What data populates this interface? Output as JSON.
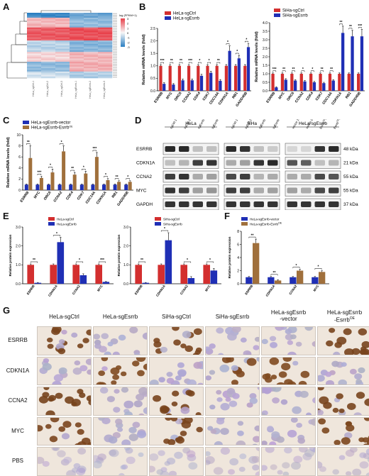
{
  "panel_labels": {
    "A": "A",
    "B": "B",
    "C": "C",
    "D": "D",
    "E": "E",
    "F": "F",
    "G": "G"
  },
  "heatmap": {
    "legend_title": "log (FPKM+1)",
    "legend_ticks": [
      "3",
      "2",
      "1",
      "0",
      "-1",
      "-2",
      "-3"
    ],
    "colors": {
      "high": "#e8404a",
      "mid": "#f7f7f7",
      "low": "#2b7fc2"
    },
    "columns": [
      "HeLa_sgCtrl-1",
      "HeLa_sgCtrl-2",
      "HeLa_sgCtrl-3",
      "HeLa_sgEsrrb-1",
      "HeLa_sgEsrrb-2",
      "HeLa_sgEsrrb-3"
    ]
  },
  "chart_data": [
    {
      "id": "B-left",
      "type": "bar",
      "ylabel": "Relative mRNA levels (fold)",
      "ylim": [
        0,
        2.5
      ],
      "yticks": [
        0.0,
        0.5,
        1.0,
        1.5,
        2.0,
        2.5
      ],
      "legend": [
        "HeLa-sgCtrl",
        "HeLa-sgEsrrb"
      ],
      "categories": [
        "ESRRB",
        "MYC",
        "ORC6",
        "CCNA2",
        "CDK4",
        "CDK7",
        "CDC14A",
        "CDKN1A",
        "RB1",
        "GADD45B"
      ],
      "series": [
        {
          "name": "HeLa-sgCtrl",
          "color": "#d32f2f",
          "values": [
            1,
            1,
            1,
            1,
            1,
            1,
            1,
            1,
            1,
            1
          ],
          "errors": [
            0.05,
            0.05,
            0.05,
            0.05,
            0.05,
            0.05,
            0.05,
            0.05,
            0.05,
            0.05
          ]
        },
        {
          "name": "HeLa-sgEsrrb",
          "color": "#1f2fb5",
          "values": [
            0.28,
            0.25,
            0.42,
            0.42,
            0.6,
            0.72,
            0.4,
            1.6,
            1.3,
            1.75
          ],
          "errors": [
            0.04,
            0.04,
            0.05,
            0.05,
            0.06,
            0.06,
            0.05,
            0.2,
            0.12,
            0.15
          ]
        }
      ],
      "sig": [
        "***",
        "**",
        "**",
        "***",
        "*",
        "*",
        "**",
        "*",
        "*",
        "*"
      ]
    },
    {
      "id": "B-right",
      "type": "bar",
      "ylabel": "Relative mRNA levels (fold)",
      "ylim": [
        0,
        4.0
      ],
      "yticks": [
        0.0,
        0.5,
        1.0,
        1.5,
        2.0,
        2.5,
        3.0,
        3.5,
        4.0
      ],
      "legend": [
        "SiHa-sgCtrl",
        "SiHa-sgEsrrb"
      ],
      "categories": [
        "ESRRB",
        "MYC",
        "ORC6",
        "CCNA2",
        "CDK4",
        "CDK7",
        "CDC14A",
        "CDKN1A",
        "RB1",
        "GADD45B"
      ],
      "series": [
        {
          "name": "SiHa-sgCtrl",
          "color": "#d32f2f",
          "values": [
            1,
            1,
            1,
            1,
            1,
            1,
            1,
            1,
            1,
            1
          ],
          "errors": [
            0.05,
            0.05,
            0.05,
            0.05,
            0.05,
            0.05,
            0.05,
            0.05,
            0.05,
            0.05
          ]
        },
        {
          "name": "SiHa-sgEsrrb",
          "color": "#1f2fb5",
          "values": [
            0.2,
            0.65,
            0.6,
            0.55,
            0.5,
            0.45,
            0.6,
            3.4,
            3.2,
            3.2
          ],
          "errors": [
            0.04,
            0.06,
            0.05,
            0.05,
            0.05,
            0.05,
            0.05,
            0.4,
            0.35,
            0.4
          ]
        }
      ],
      "sig": [
        "***",
        "**",
        "**",
        "*",
        "*",
        "**",
        "**",
        "**",
        "**",
        "***"
      ]
    },
    {
      "id": "C",
      "type": "bar",
      "ylabel": "Relative mRNA levels (fold)",
      "ylim": [
        0,
        10
      ],
      "yticks": [
        0,
        2,
        4,
        6,
        8,
        10
      ],
      "legend": [
        "HeLa-sgEsrrb-vector",
        "HeLa-sgEsrrb-Esrrb"
      ],
      "legend_sup": "OE",
      "categories": [
        "ESRRB",
        "MYC",
        "ORC6",
        "CCNA2",
        "CDK4",
        "CDK7",
        "CDC14A",
        "CDKN1A",
        "RB1",
        "GADD45B"
      ],
      "series": [
        {
          "name": "HeLa-sgEsrrb-vector",
          "color": "#1f2fb5",
          "values": [
            1,
            1,
            1,
            1,
            1,
            1,
            1,
            1,
            1,
            1
          ],
          "errors": [
            0.1,
            0.1,
            0.1,
            0.1,
            0.1,
            0.1,
            0.1,
            0.1,
            0.1,
            0.1
          ]
        },
        {
          "name": "HeLa-sgEsrrb-Esrrb",
          "color": "#a0703c",
          "values": [
            5.8,
            2.2,
            3.2,
            7.0,
            2.8,
            3.0,
            6.0,
            1.8,
            1.5,
            1.5
          ],
          "errors": [
            2.2,
            0.3,
            0.6,
            1.0,
            0.4,
            0.4,
            0.8,
            0.3,
            0.2,
            0.2
          ]
        }
      ],
      "sig": [
        "**",
        "***",
        "*",
        "*",
        "**",
        "*",
        "***",
        "*",
        "**",
        "*"
      ]
    },
    {
      "id": "E-left",
      "type": "bar",
      "ylabel": "Relative protein expression",
      "ylim": [
        0,
        3
      ],
      "yticks": [
        0,
        1,
        2,
        3
      ],
      "legend": [
        "HeLa-sgCtrl",
        "HeLa-sgEsrrb"
      ],
      "categories": [
        "ESRRB",
        "CDKN1A",
        "CCNA2",
        "MYC"
      ],
      "series": [
        {
          "name": "HeLa-sgCtrl",
          "color": "#d32f2f",
          "values": [
            1,
            1,
            1,
            1
          ],
          "errors": [
            0.05,
            0.05,
            0.05,
            0.05
          ]
        },
        {
          "name": "HeLa-sgEsrrb",
          "color": "#1f2fb5",
          "values": [
            0.05,
            2.2,
            0.45,
            0.1
          ],
          "errors": [
            0.02,
            0.25,
            0.08,
            0.02
          ]
        }
      ],
      "sig": [
        "**",
        "*",
        "*",
        "***"
      ]
    },
    {
      "id": "E-right",
      "type": "bar",
      "ylabel": "Relative protein expression",
      "ylim": [
        0,
        3
      ],
      "yticks": [
        0,
        1,
        2,
        3
      ],
      "legend": [
        "SiHa-sgCtrl",
        "SiHa-sgEsrrb"
      ],
      "categories": [
        "ESRRB",
        "CDKN1A",
        "CCNA2",
        "MYC"
      ],
      "series": [
        {
          "name": "SiHa-sgCtrl",
          "color": "#d32f2f",
          "values": [
            1,
            1,
            1,
            1
          ],
          "errors": [
            0.05,
            0.05,
            0.05,
            0.05
          ]
        },
        {
          "name": "SiHa-sgEsrrb",
          "color": "#1f2fb5",
          "values": [
            0.05,
            2.3,
            0.3,
            0.7
          ],
          "errors": [
            0.02,
            0.4,
            0.08,
            0.1
          ]
        }
      ],
      "sig": [
        "**",
        "*",
        "*",
        "*"
      ]
    },
    {
      "id": "F",
      "type": "bar",
      "ylabel": "Relative protein expression",
      "ylim": [
        0,
        8
      ],
      "yticks": [
        0,
        2,
        4,
        6,
        8
      ],
      "legend": [
        "HeLa-sgEsrrb-vector",
        "HeLa-sgEsrrb-Esrrb"
      ],
      "legend_sup": "OE",
      "categories": [
        "ESRRB",
        "CDKN1A",
        "CCNA2",
        "MYC"
      ],
      "series": [
        {
          "name": "HeLa-sgEsrrb-vector",
          "color": "#1f2fb5",
          "values": [
            1,
            1,
            1,
            1
          ],
          "errors": [
            0.1,
            0.1,
            0.1,
            0.1
          ]
        },
        {
          "name": "HeLa-sgEsrrb-Esrrb",
          "color": "#a0703c",
          "values": [
            6.2,
            0.5,
            2.0,
            1.8
          ],
          "errors": [
            0.6,
            0.1,
            0.2,
            0.2
          ]
        }
      ],
      "sig": [
        "**",
        "**",
        "*",
        "*"
      ]
    }
  ],
  "western": {
    "groups": [
      "HeLa",
      "SiHa",
      "HeLa-sgEsrrb"
    ],
    "lanes": [
      [
        "sgCtrl-1",
        "sgCtrl-2",
        "sgEsrrb-1",
        "sgEsrrb-2"
      ],
      [
        "sgCtrl-1",
        "sgCtrl-2",
        "sgEsrrb-1",
        "sgEsrrb-2"
      ],
      [
        "vector-1",
        "vector-2",
        "Esrrb-1",
        "Esrrb-2"
      ]
    ],
    "lane_sup": "OE",
    "proteins": [
      "ESRRB",
      "CDKN1A",
      "CCNA2",
      "MYC",
      "GAPDH"
    ],
    "sizes": [
      "48 kDa",
      "21 kDa",
      "55 kDa",
      "55 kDa",
      "37 kDa"
    ]
  },
  "ihc": {
    "columns": [
      "HeLa-sgCtrl",
      "HeLa-sgEsrrb",
      "SiHa-sgCtrl",
      "SiHa-sgEsrrb",
      "HeLa-sgEsrrb -vector",
      "HeLa-sgEsrrb -Esrrb"
    ],
    "col_sup": "OE",
    "rows": [
      "ESRRB",
      "CDKN1A",
      "CCNA2",
      "MYC",
      "PBS"
    ]
  }
}
